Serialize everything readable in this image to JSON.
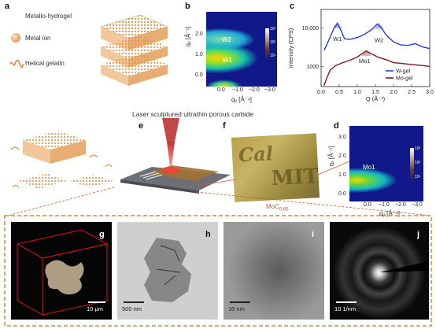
{
  "panels": {
    "a": {
      "label": "a",
      "items": [
        "Metallo-hydrogel",
        "Metal ion",
        "Helical gelatin"
      ]
    },
    "b": {
      "label": "b",
      "xlabel": "qᵧ [Å⁻¹]",
      "ylabel": "qₓ [Å⁻¹]",
      "xticks": [
        "0.0",
        "−1.0",
        "−2.0",
        "−3.0"
      ],
      "yticks": [
        "2.0",
        "1.0",
        "0.0"
      ],
      "labels": [
        "W2",
        "W1"
      ],
      "cbar": [
        "10³",
        "10²",
        "10¹"
      ]
    },
    "c": {
      "label": "c"
    },
    "d": {
      "label": "d",
      "xlabel": "qᵧ [Å⁻¹]",
      "ylabel": "qₓ [Å⁻¹]",
      "xticks": [
        "0.0",
        "−1.0",
        "−2.0",
        "−3.0"
      ],
      "yticks": [
        "3.0",
        "2.0",
        "1.0",
        "0.0"
      ],
      "labels": [
        "Mo1"
      ],
      "cbar": [
        "10³",
        "10²",
        "10¹"
      ]
    },
    "e": {
      "label": "e",
      "title": "Laser sculptured ultrathin porous carbide"
    },
    "f": {
      "label": "f",
      "caption": "MoC",
      "caption_sub": "0.66"
    },
    "g": {
      "label": "g",
      "scale": "10 μm"
    },
    "h": {
      "label": "h",
      "scale": "500 nm"
    },
    "i": {
      "label": "i",
      "scale": "10 nm"
    },
    "j": {
      "label": "j",
      "scale": "10 1/nm"
    }
  },
  "chart_data": {
    "type": "line",
    "xlabel": "Q (Å⁻¹)",
    "ylabel": "Intensity (CPS)",
    "xlim": [
      0,
      3.0
    ],
    "ylim": [
      300,
      30000
    ],
    "log_y": true,
    "xticks": [
      "0.0",
      "0.5",
      "1.0",
      "1.5",
      "2.0",
      "2.5",
      "3.0"
    ],
    "yticks": [
      "10,000",
      "1000"
    ],
    "legend_position": "bottom-right",
    "annotations": [
      {
        "text": "W1",
        "x": 0.45,
        "y": 5500
      },
      {
        "text": "W2",
        "x": 1.6,
        "y": 5200
      },
      {
        "text": "Mo1",
        "x": 1.2,
        "y": 1500
      }
    ],
    "series": [
      {
        "name": "W-gel",
        "color": "#2a3fd6",
        "x": [
          0.08,
          0.15,
          0.25,
          0.35,
          0.45,
          0.55,
          0.65,
          0.8,
          1.0,
          1.2,
          1.4,
          1.55,
          1.65,
          1.8,
          2.0,
          2.2,
          2.4,
          2.6,
          2.8,
          3.0
        ],
        "y": [
          2600,
          3500,
          5800,
          9500,
          13000,
          8500,
          5200,
          5000,
          5600,
          6800,
          9000,
          12500,
          10500,
          6500,
          4300,
          3600,
          3500,
          3900,
          3200,
          2900
        ]
      },
      {
        "name": "Mo-gel",
        "color": "#7a1d1d",
        "x": [
          0.08,
          0.15,
          0.25,
          0.4,
          0.6,
          0.8,
          1.0,
          1.15,
          1.25,
          1.4,
          1.6,
          1.8,
          2.0,
          2.2,
          2.4,
          2.6,
          2.8,
          3.0
        ],
        "y": [
          320,
          480,
          800,
          1050,
          1250,
          1450,
          1750,
          2200,
          2500,
          2100,
          1700,
          1500,
          1250,
          1200,
          1150,
          1100,
          1050,
          1000
        ]
      }
    ]
  }
}
